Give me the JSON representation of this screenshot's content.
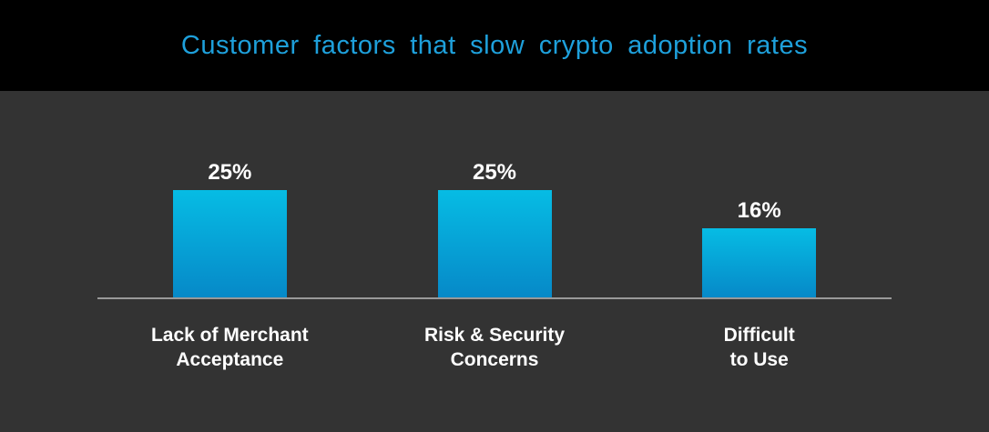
{
  "header": {
    "title": "Customer factors that slow crypto adoption rates",
    "title_color": "#1EA0DB",
    "background": "#000000"
  },
  "chart_data": {
    "type": "bar",
    "title": "Customer factors that slow crypto adoption rates",
    "categories": [
      "Lack of Merchant Acceptance",
      "Risk & Security Concerns",
      "Difficult to Use"
    ],
    "category_label_lines": [
      [
        "Lack of Merchant",
        "Acceptance"
      ],
      [
        "Risk & Security",
        "Concerns"
      ],
      [
        "Difficult",
        "to Use"
      ]
    ],
    "values": [
      25,
      25,
      16
    ],
    "value_labels": [
      "25%",
      "25%",
      "16%"
    ],
    "xlabel": "",
    "ylabel": "",
    "ylim": [
      0,
      30
    ],
    "grid": false,
    "legend": false,
    "value_unit": "%",
    "colors": {
      "bar_gradient_top": "#06BCE4",
      "bar_gradient_bottom": "#0689C8",
      "axis_line": "#999999",
      "plot_background": "#333333",
      "value_label": "#FFFFFF",
      "category_label": "#FFFFFF"
    }
  }
}
